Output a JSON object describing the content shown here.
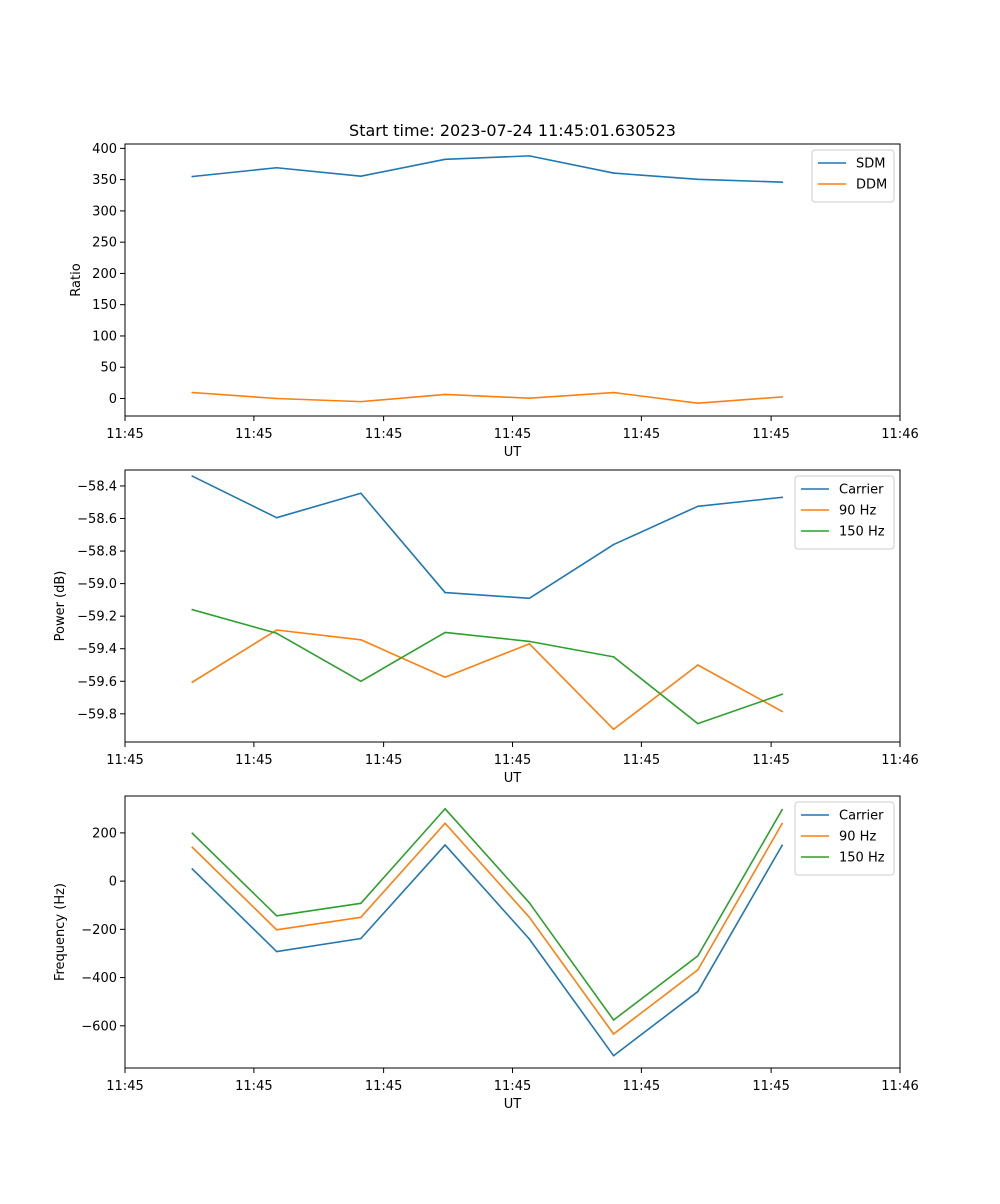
{
  "title": "Start time: 2023-07-24 11:45:01.630523",
  "colors": {
    "series1": "#1f77b4",
    "series2": "#ff7f0e",
    "series3": "#2ca02c"
  },
  "chart_data": [
    {
      "type": "line",
      "title": "Start time: 2023-07-24 11:45:01.630523",
      "xlabel": "UT",
      "ylabel": "Ratio",
      "x": [
        1,
        2,
        3,
        4,
        5,
        6,
        7,
        8
      ],
      "xlim": [
        0.2,
        9.4
      ],
      "xticks": [
        0.2,
        1.73,
        3.27,
        4.8,
        6.33,
        7.87,
        9.4
      ],
      "xtick_labels": [
        "11:45",
        "11:45",
        "11:45",
        "11:45",
        "11:45",
        "11:45",
        "11:46"
      ],
      "ylim": [
        -28,
        407
      ],
      "yticks": [
        0,
        50,
        100,
        150,
        200,
        250,
        300,
        350,
        400
      ],
      "ytick_labels": [
        "0",
        "50",
        "100",
        "150",
        "200",
        "250",
        "300",
        "350",
        "400"
      ],
      "legend": "upper right",
      "series": [
        {
          "name": "SDM",
          "color": "#1f77b4",
          "values": [
            355,
            369,
            355.5,
            382.5,
            388,
            360.5,
            350.5,
            346
          ]
        },
        {
          "name": "DDM",
          "color": "#ff7f0e",
          "values": [
            9.5,
            0,
            -5,
            6.5,
            0.5,
            9.5,
            -7.5,
            2.5
          ]
        }
      ]
    },
    {
      "type": "line",
      "title": "",
      "xlabel": "UT",
      "ylabel": "Power (dB)",
      "x": [
        1,
        2,
        3,
        4,
        5,
        6,
        7,
        8
      ],
      "xlim": [
        0.2,
        9.4
      ],
      "xticks": [
        0.2,
        1.73,
        3.27,
        4.8,
        6.33,
        7.87,
        9.4
      ],
      "xtick_labels": [
        "11:45",
        "11:45",
        "11:45",
        "11:45",
        "11:45",
        "11:45",
        "11:46"
      ],
      "ylim": [
        -59.973,
        -58.302
      ],
      "yticks": [
        -59.8,
        -59.6,
        -59.4,
        -59.2,
        -59.0,
        -58.8,
        -58.6,
        -58.4
      ],
      "ytick_labels": [
        "−59.8",
        "−59.6",
        "−59.4",
        "−59.2",
        "−59.0",
        "−58.8",
        "−58.6",
        "−58.4"
      ],
      "legend": "upper right",
      "series": [
        {
          "name": "Carrier",
          "color": "#1f77b4",
          "values": [
            -58.34,
            -58.595,
            -58.445,
            -59.055,
            -59.09,
            -58.76,
            -58.525,
            -58.47
          ]
        },
        {
          "name": "90 Hz",
          "color": "#ff7f0e",
          "values": [
            -59.605,
            -59.285,
            -59.345,
            -59.575,
            -59.37,
            -59.895,
            -59.5,
            -59.785
          ]
        },
        {
          "name": "150 Hz",
          "color": "#2ca02c",
          "values": [
            -59.16,
            -59.305,
            -59.6,
            -59.3,
            -59.355,
            -59.45,
            -59.86,
            -59.68
          ]
        }
      ]
    },
    {
      "type": "line",
      "title": "",
      "xlabel": "UT",
      "ylabel": "Frequency (Hz)",
      "x": [
        1,
        2,
        3,
        4,
        5,
        6,
        7,
        8
      ],
      "xlim": [
        0.2,
        9.4
      ],
      "xticks": [
        0.2,
        1.73,
        3.27,
        4.8,
        6.33,
        7.87,
        9.4
      ],
      "xtick_labels": [
        "11:45",
        "11:45",
        "11:45",
        "11:45",
        "11:45",
        "11:45",
        "11:46"
      ],
      "ylim": [
        -775,
        353
      ],
      "yticks": [
        -600,
        -400,
        -200,
        0,
        200
      ],
      "ytick_labels": [
        "−600",
        "−400",
        "−200",
        "0",
        "200"
      ],
      "legend": "upper right",
      "series": [
        {
          "name": "Carrier",
          "color": "#1f77b4",
          "values": [
            50,
            -292,
            -238,
            150,
            -240,
            -724,
            -458,
            148
          ]
        },
        {
          "name": "90 Hz",
          "color": "#ff7f0e",
          "values": [
            140,
            -202,
            -150,
            240,
            -150,
            -634,
            -368,
            238
          ]
        },
        {
          "name": "150 Hz",
          "color": "#2ca02c",
          "values": [
            198,
            -144,
            -92,
            300,
            -90,
            -576,
            -310,
            296
          ]
        }
      ]
    }
  ]
}
